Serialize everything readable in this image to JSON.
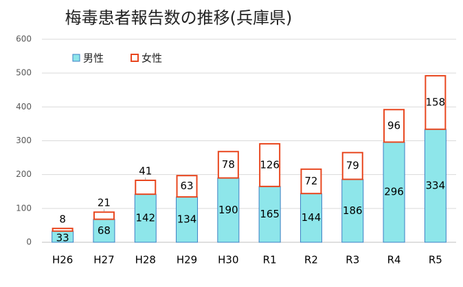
{
  "chart_data": {
    "type": "bar",
    "stacked": true,
    "title": "梅毒患者報告数の推移(兵庫県)",
    "categories": [
      "H26",
      "H27",
      "H28",
      "H29",
      "H30",
      "R1",
      "R2",
      "R3",
      "R4",
      "R5"
    ],
    "series": [
      {
        "name": "男性",
        "values": [
          33,
          68,
          142,
          134,
          190,
          165,
          144,
          186,
          296,
          334
        ],
        "fill": "#8ee6ea",
        "stroke": "#3b7fc4"
      },
      {
        "name": "女性",
        "values": [
          8,
          21,
          41,
          63,
          78,
          126,
          72,
          79,
          96,
          158
        ],
        "fill": "#ffffff",
        "stroke": "#e8461e"
      }
    ],
    "ylim": [
      0,
      600
    ],
    "yticks": [
      0,
      100,
      200,
      300,
      400,
      500,
      600
    ],
    "legend_position": "top-left",
    "grid": true
  }
}
